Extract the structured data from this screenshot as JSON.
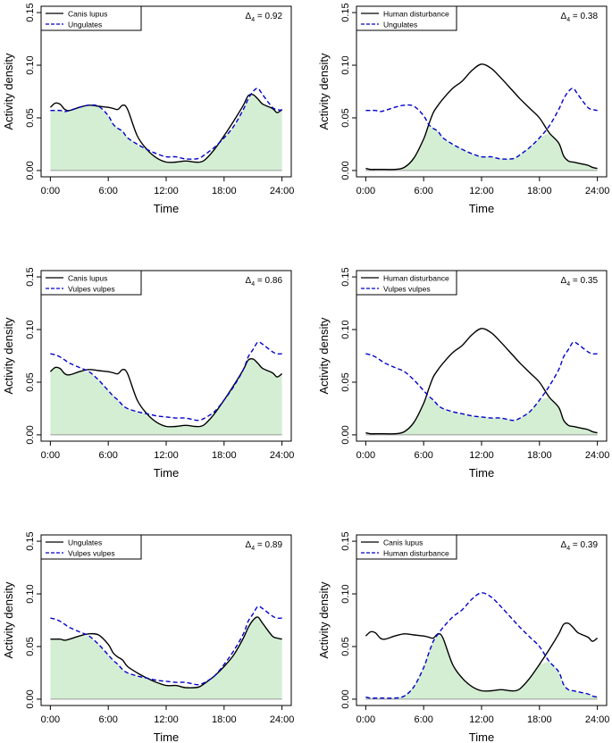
{
  "chart_data": [
    {
      "type": "line",
      "x_label": "Time",
      "y_label": "Activity density",
      "x_ticks": [
        "0:00",
        "6:00",
        "12:00",
        "18:00",
        "24:00"
      ],
      "y_ticks": [
        "0.00",
        "0.05",
        "0.10",
        "0.15"
      ],
      "xlim": [
        0,
        24
      ],
      "ylim": [
        0,
        0.15
      ],
      "x": [
        0,
        0.5,
        1,
        1.5,
        2,
        3,
        4,
        5,
        6,
        6.5,
        7,
        7.5,
        8,
        9,
        10,
        11,
        12,
        13,
        14,
        15,
        15.5,
        16,
        17,
        18,
        19,
        20,
        20.5,
        21,
        21.5,
        22,
        23,
        23.5,
        24
      ],
      "overlap_label": "Δ",
      "overlap_sub": "4",
      "overlap_value": " = 0.92",
      "series": [
        {
          "name": "Canis lupus",
          "style": "solid",
          "color": "#000000",
          "values": [
            0.06,
            0.064,
            0.063,
            0.058,
            0.057,
            0.06,
            0.062,
            0.061,
            0.06,
            0.059,
            0.058,
            0.062,
            0.058,
            0.033,
            0.02,
            0.012,
            0.008,
            0.008,
            0.009,
            0.008,
            0.008,
            0.01,
            0.02,
            0.033,
            0.047,
            0.062,
            0.071,
            0.072,
            0.068,
            0.063,
            0.059,
            0.055,
            0.058
          ]
        },
        {
          "name": "Ungulates",
          "style": "dashed",
          "color": "#0000cc",
          "values": [
            0.057,
            0.057,
            0.057,
            0.056,
            0.057,
            0.06,
            0.062,
            0.061,
            0.052,
            0.044,
            0.04,
            0.037,
            0.031,
            0.025,
            0.02,
            0.016,
            0.013,
            0.013,
            0.011,
            0.011,
            0.012,
            0.015,
            0.022,
            0.031,
            0.042,
            0.058,
            0.068,
            0.075,
            0.078,
            0.072,
            0.06,
            0.058,
            0.057
          ]
        }
      ]
    },
    {
      "type": "line",
      "x_label": "Time",
      "y_label": "Activity density",
      "x_ticks": [
        "0:00",
        "6:00",
        "12:00",
        "18:00",
        "24:00"
      ],
      "y_ticks": [
        "0.00",
        "0.05",
        "0.10",
        "0.15"
      ],
      "xlim": [
        0,
        24
      ],
      "ylim": [
        0,
        0.15
      ],
      "x": [
        0,
        0.5,
        1,
        1.5,
        2,
        3,
        4,
        5,
        6,
        6.5,
        7,
        7.5,
        8,
        9,
        10,
        11,
        12,
        13,
        14,
        15,
        15.5,
        16,
        17,
        18,
        19,
        20,
        20.5,
        21,
        21.5,
        22,
        23,
        23.5,
        24
      ],
      "overlap_label": "Δ",
      "overlap_sub": "4",
      "overlap_value": " = 0.38",
      "series": [
        {
          "name": "Human disturbance",
          "style": "solid",
          "color": "#000000",
          "values": [
            0.002,
            0.001,
            0.001,
            0.001,
            0.001,
            0.001,
            0.003,
            0.012,
            0.03,
            0.043,
            0.055,
            0.062,
            0.068,
            0.078,
            0.085,
            0.095,
            0.101,
            0.097,
            0.088,
            0.078,
            0.073,
            0.068,
            0.059,
            0.05,
            0.036,
            0.026,
            0.014,
            0.009,
            0.008,
            0.007,
            0.005,
            0.003,
            0.002
          ]
        },
        {
          "name": "Ungulates",
          "style": "dashed",
          "color": "#0000cc",
          "values": [
            0.057,
            0.057,
            0.057,
            0.056,
            0.057,
            0.06,
            0.062,
            0.061,
            0.052,
            0.044,
            0.04,
            0.037,
            0.031,
            0.025,
            0.02,
            0.016,
            0.013,
            0.013,
            0.011,
            0.011,
            0.012,
            0.015,
            0.022,
            0.031,
            0.042,
            0.058,
            0.068,
            0.075,
            0.078,
            0.072,
            0.06,
            0.058,
            0.057
          ]
        }
      ]
    },
    {
      "type": "line",
      "x_label": "Time",
      "y_label": "Activity density",
      "x_ticks": [
        "0:00",
        "6:00",
        "12:00",
        "18:00",
        "24:00"
      ],
      "y_ticks": [
        "0.00",
        "0.05",
        "0.10",
        "0.15"
      ],
      "xlim": [
        0,
        24
      ],
      "ylim": [
        0,
        0.15
      ],
      "x": [
        0,
        0.5,
        1,
        1.5,
        2,
        3,
        4,
        5,
        6,
        6.5,
        7,
        7.5,
        8,
        9,
        10,
        11,
        12,
        13,
        14,
        15,
        15.5,
        16,
        17,
        18,
        19,
        20,
        20.5,
        21,
        21.5,
        22,
        23,
        23.5,
        24
      ],
      "overlap_label": "Δ",
      "overlap_sub": "4",
      "overlap_value": " = 0.86",
      "series": [
        {
          "name": "Canis lupus",
          "style": "solid",
          "color": "#000000",
          "values": [
            0.06,
            0.064,
            0.063,
            0.058,
            0.057,
            0.06,
            0.062,
            0.061,
            0.06,
            0.059,
            0.058,
            0.062,
            0.058,
            0.033,
            0.02,
            0.012,
            0.008,
            0.008,
            0.009,
            0.008,
            0.008,
            0.01,
            0.02,
            0.033,
            0.047,
            0.062,
            0.071,
            0.072,
            0.068,
            0.063,
            0.059,
            0.055,
            0.058
          ]
        },
        {
          "name": "Vulpes vulpes",
          "style": "dashed",
          "color": "#0000cc",
          "values": [
            0.077,
            0.076,
            0.074,
            0.071,
            0.068,
            0.064,
            0.06,
            0.052,
            0.042,
            0.037,
            0.033,
            0.028,
            0.025,
            0.022,
            0.02,
            0.018,
            0.017,
            0.016,
            0.016,
            0.014,
            0.014,
            0.016,
            0.022,
            0.033,
            0.046,
            0.062,
            0.074,
            0.081,
            0.088,
            0.086,
            0.079,
            0.077,
            0.077
          ]
        }
      ]
    },
    {
      "type": "line",
      "x_label": "Time",
      "y_label": "Activity density",
      "x_ticks": [
        "0:00",
        "6:00",
        "12:00",
        "18:00",
        "24:00"
      ],
      "y_ticks": [
        "0.00",
        "0.05",
        "0.10",
        "0.15"
      ],
      "xlim": [
        0,
        24
      ],
      "ylim": [
        0,
        0.15
      ],
      "x": [
        0,
        0.5,
        1,
        1.5,
        2,
        3,
        4,
        5,
        6,
        6.5,
        7,
        7.5,
        8,
        9,
        10,
        11,
        12,
        13,
        14,
        15,
        15.5,
        16,
        17,
        18,
        19,
        20,
        20.5,
        21,
        21.5,
        22,
        23,
        23.5,
        24
      ],
      "overlap_label": "Δ",
      "overlap_sub": "4",
      "overlap_value": " = 0.35",
      "series": [
        {
          "name": "Human disturbance",
          "style": "solid",
          "color": "#000000",
          "values": [
            0.002,
            0.001,
            0.001,
            0.001,
            0.001,
            0.001,
            0.003,
            0.012,
            0.03,
            0.043,
            0.055,
            0.062,
            0.068,
            0.078,
            0.085,
            0.095,
            0.101,
            0.097,
            0.088,
            0.078,
            0.073,
            0.068,
            0.059,
            0.05,
            0.036,
            0.026,
            0.014,
            0.009,
            0.008,
            0.007,
            0.005,
            0.003,
            0.002
          ]
        },
        {
          "name": "Vulpes vulpes",
          "style": "dashed",
          "color": "#0000cc",
          "values": [
            0.077,
            0.076,
            0.074,
            0.071,
            0.068,
            0.064,
            0.06,
            0.052,
            0.042,
            0.037,
            0.033,
            0.028,
            0.025,
            0.022,
            0.02,
            0.018,
            0.017,
            0.016,
            0.016,
            0.014,
            0.014,
            0.016,
            0.022,
            0.033,
            0.046,
            0.062,
            0.074,
            0.081,
            0.088,
            0.086,
            0.079,
            0.077,
            0.077
          ]
        }
      ]
    },
    {
      "type": "line",
      "x_label": "Time",
      "y_label": "Activity density",
      "x_ticks": [
        "0:00",
        "6:00",
        "12:00",
        "18:00",
        "24:00"
      ],
      "y_ticks": [
        "0.00",
        "0.05",
        "0.10",
        "0.15"
      ],
      "xlim": [
        0,
        24
      ],
      "ylim": [
        0,
        0.15
      ],
      "x": [
        0,
        0.5,
        1,
        1.5,
        2,
        3,
        4,
        5,
        6,
        6.5,
        7,
        7.5,
        8,
        9,
        10,
        11,
        12,
        13,
        14,
        15,
        15.5,
        16,
        17,
        18,
        19,
        20,
        20.5,
        21,
        21.5,
        22,
        23,
        23.5,
        24
      ],
      "overlap_label": "Δ",
      "overlap_sub": "4",
      "overlap_value": " = 0.89",
      "series": [
        {
          "name": "Ungulates",
          "style": "solid",
          "color": "#000000",
          "values": [
            0.057,
            0.057,
            0.057,
            0.056,
            0.057,
            0.06,
            0.062,
            0.061,
            0.052,
            0.044,
            0.04,
            0.037,
            0.031,
            0.025,
            0.02,
            0.016,
            0.013,
            0.013,
            0.011,
            0.011,
            0.012,
            0.015,
            0.022,
            0.031,
            0.042,
            0.058,
            0.068,
            0.075,
            0.078,
            0.072,
            0.06,
            0.058,
            0.057
          ]
        },
        {
          "name": "Vulpes vulpes",
          "style": "dashed",
          "color": "#0000cc",
          "values": [
            0.077,
            0.076,
            0.074,
            0.071,
            0.068,
            0.064,
            0.06,
            0.052,
            0.042,
            0.037,
            0.033,
            0.028,
            0.025,
            0.022,
            0.02,
            0.018,
            0.017,
            0.016,
            0.016,
            0.014,
            0.014,
            0.016,
            0.022,
            0.033,
            0.046,
            0.062,
            0.074,
            0.081,
            0.088,
            0.086,
            0.079,
            0.077,
            0.077
          ]
        }
      ]
    },
    {
      "type": "line",
      "x_label": "Time",
      "y_label": "Activity density",
      "x_ticks": [
        "0:00",
        "6:00",
        "12:00",
        "18:00",
        "24:00"
      ],
      "y_ticks": [
        "0.00",
        "0.05",
        "0.10",
        "0.15"
      ],
      "xlim": [
        0,
        24
      ],
      "ylim": [
        0,
        0.15
      ],
      "x": [
        0,
        0.5,
        1,
        1.5,
        2,
        3,
        4,
        5,
        6,
        6.5,
        7,
        7.5,
        8,
        9,
        10,
        11,
        12,
        13,
        14,
        15,
        15.5,
        16,
        17,
        18,
        19,
        20,
        20.5,
        21,
        21.5,
        22,
        23,
        23.5,
        24
      ],
      "overlap_label": "Δ",
      "overlap_sub": "4",
      "overlap_value": " = 0.39",
      "series": [
        {
          "name": "Canis lupus",
          "style": "solid",
          "color": "#000000",
          "values": [
            0.06,
            0.064,
            0.063,
            0.058,
            0.057,
            0.06,
            0.062,
            0.061,
            0.06,
            0.059,
            0.058,
            0.062,
            0.058,
            0.033,
            0.02,
            0.012,
            0.008,
            0.008,
            0.009,
            0.008,
            0.008,
            0.01,
            0.02,
            0.033,
            0.047,
            0.062,
            0.071,
            0.072,
            0.068,
            0.063,
            0.059,
            0.055,
            0.058
          ]
        },
        {
          "name": "Human disturbance",
          "style": "dashed",
          "color": "#0000cc",
          "values": [
            0.002,
            0.001,
            0.001,
            0.001,
            0.001,
            0.001,
            0.003,
            0.012,
            0.03,
            0.043,
            0.055,
            0.062,
            0.068,
            0.078,
            0.085,
            0.095,
            0.101,
            0.097,
            0.088,
            0.078,
            0.073,
            0.068,
            0.059,
            0.05,
            0.036,
            0.026,
            0.014,
            0.009,
            0.008,
            0.007,
            0.005,
            0.003,
            0.002
          ]
        }
      ]
    }
  ],
  "colors": {
    "overlap_fill": "#d4eed4",
    "solid_line": "#000000",
    "dashed_line": "#0000cc",
    "axis": "#000000",
    "baseline": "#999999"
  }
}
